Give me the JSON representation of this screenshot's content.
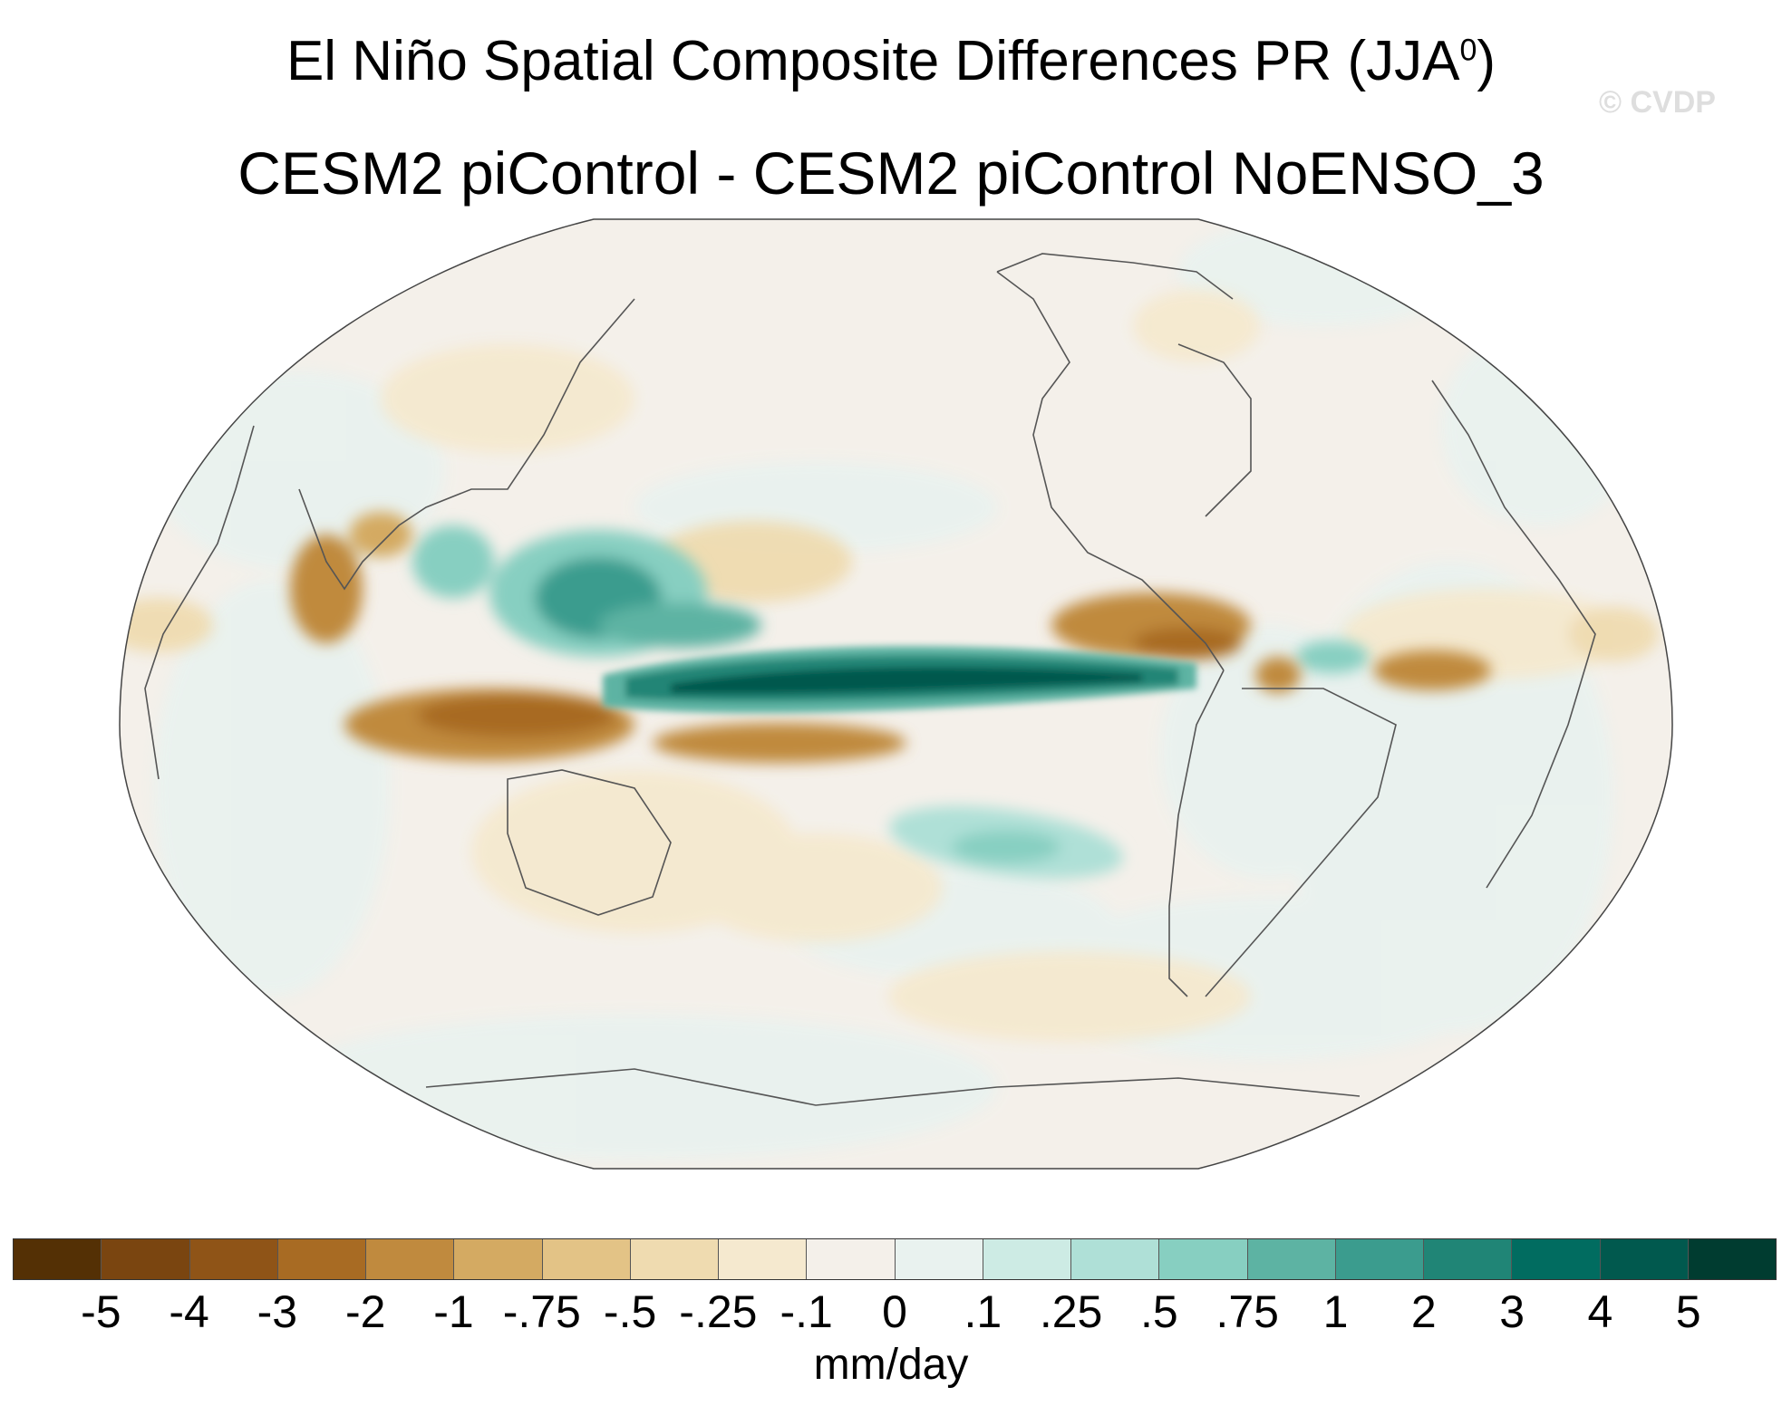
{
  "title": {
    "line1_main": "El Niño Spatial Composite Differences PR (JJA",
    "line1_sup": "0",
    "line1_end": ")",
    "line2": "CESM2 piControl - CESM2 piControl NoENSO_3"
  },
  "watermark": "© CVDP",
  "map": {
    "projection": "Robinson",
    "variable": "PR",
    "season": "JJA",
    "ocean_neutral_color": "#f4f0ea",
    "coast_color": "#555555",
    "anomalies": [
      {
        "region": "Central-East Equatorial Pacific",
        "sign": "positive",
        "level": "3 to 5"
      },
      {
        "region": "Western Pacific / Philippine Sea",
        "sign": "positive",
        "level": "1 to 2"
      },
      {
        "region": "Maritime Continent / Eastern Indian Ocean",
        "sign": "negative",
        "level": "-2 to -4"
      },
      {
        "region": "South Pacific Convergence Zone",
        "sign": "negative",
        "level": "-1 to -2"
      },
      {
        "region": "Central America / Caribbean",
        "sign": "negative",
        "level": "-1 to -2"
      },
      {
        "region": "Tropical Atlantic",
        "sign": "negative",
        "level": "-1"
      },
      {
        "region": "India / Bay of Bengal",
        "sign": "negative",
        "level": "-1 to -2"
      },
      {
        "region": "Southeast Pacific",
        "sign": "positive",
        "level": ".5 to .75"
      }
    ]
  },
  "colorbar": {
    "colors": [
      "#543005",
      "#7a4510",
      "#8f5417",
      "#a86b23",
      "#c08a3e",
      "#d4aa62",
      "#e3c386",
      "#efdbb0",
      "#f5e9cf",
      "#f4f0ea",
      "#e9f2ef",
      "#cdebe4",
      "#afe0d7",
      "#87cfc1",
      "#5db3a3",
      "#3b9c8e",
      "#208576",
      "#016c60",
      "#01594e",
      "#003c30"
    ],
    "ticks": [
      "-5",
      "-4",
      "-3",
      "-2",
      "-1",
      "-.75",
      "-.5",
      "-.25",
      "-.1",
      "0",
      ".1",
      ".25",
      ".5",
      ".75",
      "1",
      "2",
      "3",
      "4",
      "5"
    ],
    "units": "mm/day"
  }
}
